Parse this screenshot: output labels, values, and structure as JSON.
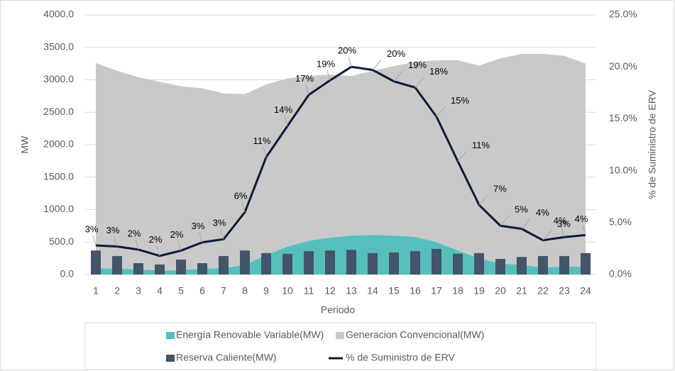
{
  "chart_data": {
    "type": "combo",
    "xlabel": "Periodo",
    "ylabel": "MW",
    "y2label": "% de Suministro de ERV",
    "categories": [
      "1",
      "2",
      "3",
      "4",
      "5",
      "6",
      "7",
      "8",
      "9",
      "10",
      "11",
      "12",
      "13",
      "14",
      "15",
      "16",
      "17",
      "18",
      "19",
      "20",
      "21",
      "22",
      "23",
      "24"
    ],
    "series": [
      {
        "name": "Energía Renovable Variable(MW)",
        "type": "area",
        "stack": true,
        "color": "#56bfbc",
        "values": [
          100,
          90,
          80,
          60,
          70,
          90,
          100,
          150,
          300,
          430,
          520,
          570,
          600,
          610,
          600,
          580,
          500,
          370,
          250,
          170,
          150,
          110,
          120,
          120
        ]
      },
      {
        "name": "Generacion Convencional(MW)",
        "type": "area",
        "stack": true,
        "color": "#c9c9c9",
        "values": [
          3160,
          3050,
          2960,
          2910,
          2830,
          2780,
          2690,
          2630,
          2630,
          2590,
          2540,
          2510,
          2460,
          2530,
          2610,
          2700,
          2800,
          2930,
          2970,
          3160,
          3250,
          3290,
          3250,
          3130
        ]
      },
      {
        "name": "Reserva Caliente(MW)",
        "type": "bar",
        "color": "#44546a",
        "values": [
          370,
          285,
          175,
          155,
          230,
          175,
          285,
          370,
          330,
          320,
          360,
          370,
          380,
          330,
          340,
          360,
          395,
          320,
          330,
          240,
          270,
          285,
          285,
          330
        ]
      },
      {
        "name": "% de Suministro de ERV",
        "type": "line",
        "axis": "y2",
        "color": "#0d1a3a",
        "values": [
          2.8,
          2.7,
          2.4,
          1.8,
          2.3,
          3.1,
          3.4,
          6.0,
          11.3,
          14.3,
          17.3,
          18.7,
          20.0,
          19.7,
          18.6,
          18.0,
          15.2,
          10.9,
          6.7,
          4.7,
          4.4,
          3.3,
          3.6,
          3.8
        ],
        "value_labels": [
          "3%",
          "3%",
          "2%",
          "2%",
          "2%",
          "3%",
          "3%",
          "6%",
          "11%",
          "14%",
          "17%",
          "19%",
          "20%",
          "20%",
          "19%",
          "18%",
          "15%",
          "11%",
          "7%",
          "5%",
          "4%",
          "3%",
          "4%",
          "4%"
        ]
      }
    ],
    "ylim": [
      0,
      4000
    ],
    "yticks": [
      {
        "value": 0,
        "label": "0.0"
      },
      {
        "value": 500,
        "label": "500.0"
      },
      {
        "value": 1000,
        "label": "1000.0"
      },
      {
        "value": 1500,
        "label": "1500.0"
      },
      {
        "value": 2000,
        "label": "2000.0"
      },
      {
        "value": 2500,
        "label": "2500.0"
      },
      {
        "value": 3000,
        "label": "3000.0"
      },
      {
        "value": 3500,
        "label": "3500.0"
      },
      {
        "value": 4000,
        "label": "4000.0"
      }
    ],
    "y2lim": [
      0,
      25
    ],
    "y2ticks": [
      {
        "value": 0,
        "label": "0.0%"
      },
      {
        "value": 5,
        "label": "5.0%"
      },
      {
        "value": 10,
        "label": "10.0%"
      },
      {
        "value": 15,
        "label": "15.0%"
      },
      {
        "value": 20,
        "label": "20.0%"
      },
      {
        "value": 25,
        "label": "25.0%"
      }
    ],
    "grid": true,
    "legend": "bottom"
  }
}
